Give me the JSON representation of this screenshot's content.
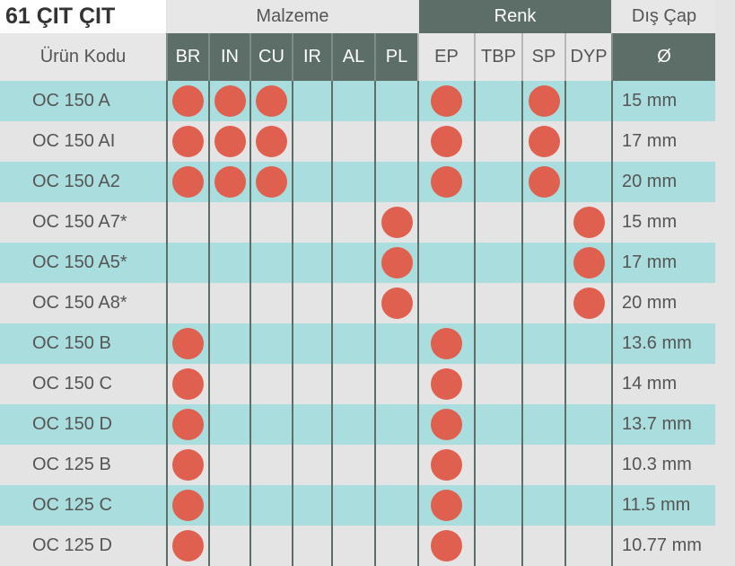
{
  "title": "61 ÇIT ÇIT",
  "headers": {
    "code": "Ürün Kodu",
    "malzeme": "Malzeme",
    "renk": "Renk",
    "dis_cap": "Dış Çap",
    "diameter_symbol": "Ø",
    "malzeme_cols": [
      "BR",
      "IN",
      "CU",
      "IR",
      "AL",
      "PL"
    ],
    "renk_cols": [
      "EP",
      "TBP",
      "SP",
      "DYP"
    ]
  },
  "colors": {
    "dot": "#e06050",
    "teal_row": "#aadddd",
    "gray_row": "#e4e4e4",
    "dark_header": "#5d6e69"
  },
  "rows": [
    {
      "code": "OC 150 A",
      "malzeme": [
        "BR",
        "IN",
        "CU"
      ],
      "renk": [
        "EP",
        "SP"
      ],
      "diameter": "15 mm"
    },
    {
      "code": "OC 150 AI",
      "malzeme": [
        "BR",
        "IN",
        "CU"
      ],
      "renk": [
        "EP",
        "SP"
      ],
      "diameter": "17 mm"
    },
    {
      "code": "OC 150 A2",
      "malzeme": [
        "BR",
        "IN",
        "CU"
      ],
      "renk": [
        "EP",
        "SP"
      ],
      "diameter": "20 mm"
    },
    {
      "code": "OC 150 A7*",
      "malzeme": [
        "PL"
      ],
      "renk": [
        "DYP"
      ],
      "diameter": "15 mm"
    },
    {
      "code": "OC 150 A5*",
      "malzeme": [
        "PL"
      ],
      "renk": [
        "DYP"
      ],
      "diameter": "17 mm"
    },
    {
      "code": "OC 150 A8*",
      "malzeme": [
        "PL"
      ],
      "renk": [
        "DYP"
      ],
      "diameter": "20 mm"
    },
    {
      "code": "OC 150 B",
      "malzeme": [
        "BR"
      ],
      "renk": [
        "EP"
      ],
      "diameter": "13.6 mm"
    },
    {
      "code": "OC 150 C",
      "malzeme": [
        "BR"
      ],
      "renk": [
        "EP"
      ],
      "diameter": "14 mm"
    },
    {
      "code": "OC 150 D",
      "malzeme": [
        "BR"
      ],
      "renk": [
        "EP"
      ],
      "diameter": "13.7 mm"
    },
    {
      "code": "OC 125 B",
      "malzeme": [
        "BR"
      ],
      "renk": [
        "EP"
      ],
      "diameter": "10.3 mm"
    },
    {
      "code": "OC 125 C",
      "malzeme": [
        "BR"
      ],
      "renk": [
        "EP"
      ],
      "diameter": "11.5 mm"
    },
    {
      "code": "OC 125 D",
      "malzeme": [
        "BR"
      ],
      "renk": [
        "EP"
      ],
      "diameter": "10.77 mm"
    }
  ]
}
